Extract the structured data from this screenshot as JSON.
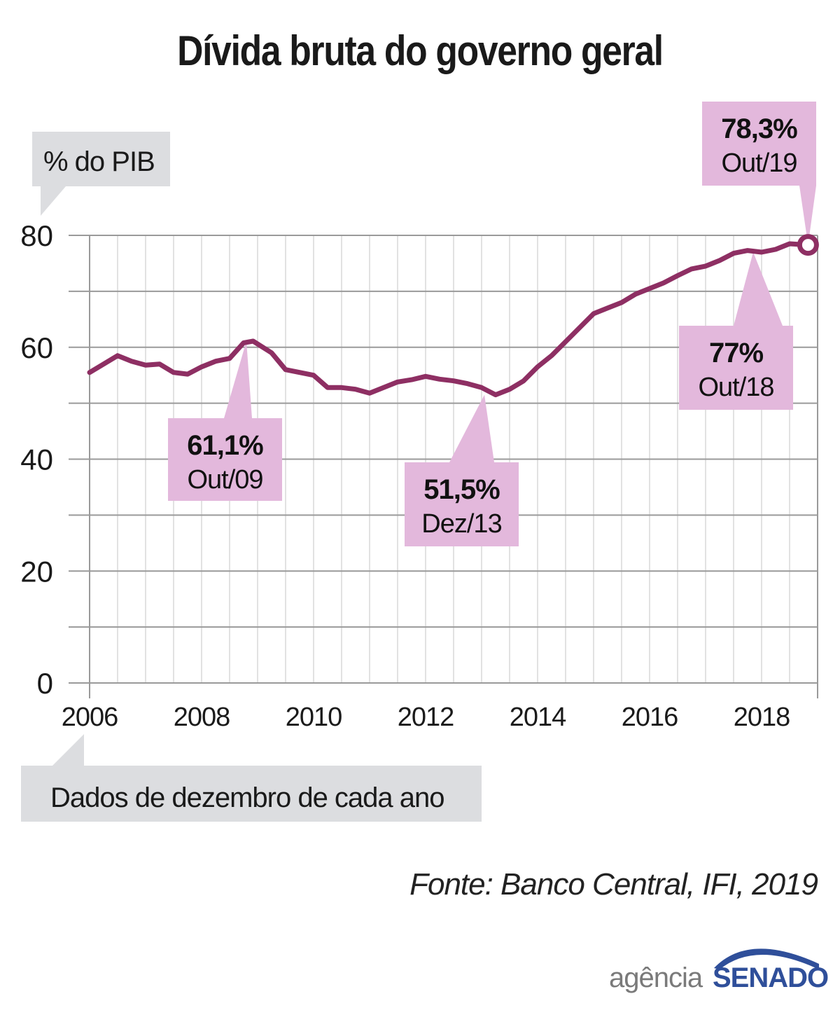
{
  "chart_data": {
    "type": "line",
    "title": "Dívida bruta do governo geral",
    "ylabel": "% do PIB",
    "xlabel": "",
    "note": "Dados de dezembro de cada ano",
    "source": "Fonte: Banco Central, IFI, 2019",
    "ylim": [
      0,
      80
    ],
    "xlim": [
      2006,
      2019
    ],
    "yticks": [
      "0",
      "20",
      "40",
      "60",
      "80"
    ],
    "xticks": [
      "2006",
      "2008",
      "2010",
      "2012",
      "2014",
      "2016",
      "2018"
    ],
    "series": [
      {
        "name": "Dívida bruta (% do PIB)",
        "color": "#8e2f63",
        "x": [
          2006.0,
          2006.25,
          2006.5,
          2006.75,
          2007.0,
          2007.25,
          2007.5,
          2007.75,
          2008.0,
          2008.25,
          2008.5,
          2008.75,
          2008.92,
          2009.25,
          2009.5,
          2009.75,
          2010.0,
          2010.25,
          2010.5,
          2010.75,
          2011.0,
          2011.25,
          2011.5,
          2011.75,
          2012.0,
          2012.25,
          2012.5,
          2012.75,
          2013.0,
          2013.25,
          2013.5,
          2013.75,
          2014.0,
          2014.25,
          2014.5,
          2014.75,
          2015.0,
          2015.25,
          2015.5,
          2015.75,
          2016.0,
          2016.25,
          2016.5,
          2016.75,
          2017.0,
          2017.25,
          2017.5,
          2017.75,
          2018.0,
          2018.25,
          2018.5,
          2018.83
        ],
        "values": [
          55.5,
          57.0,
          58.5,
          57.5,
          56.8,
          57.0,
          55.5,
          55.2,
          56.5,
          57.5,
          58.0,
          60.8,
          61.1,
          59.0,
          56.0,
          55.5,
          55.0,
          52.8,
          52.8,
          52.5,
          51.8,
          52.8,
          53.8,
          54.2,
          54.8,
          54.3,
          54.0,
          53.5,
          52.8,
          51.5,
          52.5,
          54.0,
          56.5,
          58.5,
          61.0,
          63.5,
          66.0,
          67.0,
          68.0,
          69.5,
          70.5,
          71.5,
          72.8,
          74.0,
          74.5,
          75.5,
          76.8,
          77.3,
          77.0,
          77.5,
          78.5,
          78.3
        ]
      }
    ],
    "annotations": [
      {
        "value": "61,1%",
        "date": "Out/09",
        "x": 2008.8,
        "y": 61.1
      },
      {
        "value": "51,5%",
        "date": "Dez/13",
        "x": 2013.05,
        "y": 51.5
      },
      {
        "value": "77%",
        "date": "Out/18",
        "x": 2017.85,
        "y": 77.0
      },
      {
        "value": "78,3%",
        "date": "Out/19",
        "x": 2018.83,
        "y": 78.3
      }
    ]
  },
  "logo": {
    "left": "agência",
    "right": "SENADO"
  }
}
